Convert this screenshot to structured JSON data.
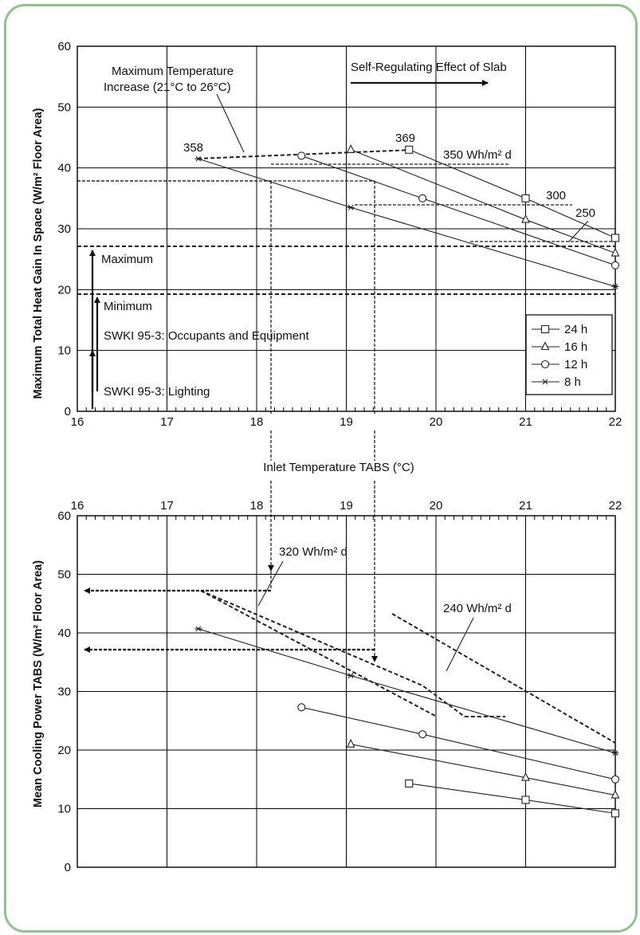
{
  "colors": {
    "frame_border": "#8cc48c",
    "ink": "#222222"
  },
  "top_chart": {
    "ylabel": "Maximum Total Heat Gain In Space (W/m² Floor Area)",
    "x_ticks": [
      "16",
      "17",
      "18",
      "19",
      "20",
      "21",
      "22"
    ],
    "y_ticks": [
      "0",
      "10",
      "20",
      "30",
      "40",
      "50",
      "60"
    ],
    "annotations": {
      "max_temp_1": "Maximum Temperature",
      "max_temp_2": "Increase (21°C to 26°C)",
      "self_reg": "Self-Regulating Effect of Slab",
      "v358": "358",
      "v369": "369",
      "v350": "350 Wh/m² d",
      "v300": "300",
      "v250": "250",
      "maximum": "Maximum",
      "minimum": "Minimum",
      "swki_occ": "SWKI 95-3: Occupants and Equipment",
      "swki_light": "SWKI 95-3: Lighting"
    },
    "legend": [
      {
        "label": "24 h",
        "marker": "square-icon"
      },
      {
        "label": "16 h",
        "marker": "triangle-icon"
      },
      {
        "label": "12 h",
        "marker": "circle-icon"
      },
      {
        "label": "8 h",
        "marker": "asterisk-icon"
      }
    ]
  },
  "shared_xlabel": "Inlet Temperature TABS (°C)",
  "bottom_chart": {
    "ylabel": "Mean Cooling Power TABS (W/m² Floor Area)",
    "x_ticks": [
      "16",
      "17",
      "18",
      "19",
      "20",
      "21",
      "22"
    ],
    "y_ticks": [
      "0",
      "10",
      "20",
      "30",
      "40",
      "50",
      "60"
    ],
    "annotations": {
      "v320": "320 Wh/m² d",
      "v240": "240 Wh/m² d"
    }
  },
  "chart_data": [
    {
      "type": "line",
      "xlim": [
        16,
        22
      ],
      "ylim": [
        0,
        60
      ],
      "xlabel": "Inlet Temperature TABS (°C)",
      "ylabel": "Maximum Total Heat Gain In Space (W/m² Floor Area)",
      "legend_placement": "right",
      "grid": true,
      "series": [
        {
          "name": "24 h",
          "marker": "square",
          "x": [
            19.7,
            21.0,
            22.0
          ],
          "y": [
            43,
            35,
            28.5
          ]
        },
        {
          "name": "16 h",
          "marker": "triangle",
          "x": [
            19.05,
            21.0,
            22.0
          ],
          "y": [
            43,
            31.5,
            26
          ]
        },
        {
          "name": "12 h",
          "marker": "circle",
          "x": [
            18.5,
            19.85,
            22.0
          ],
          "y": [
            42,
            35,
            24
          ]
        },
        {
          "name": "8 h",
          "marker": "asterisk",
          "x": [
            17.35,
            19.05,
            22.0
          ],
          "y": [
            41.5,
            33.5,
            20.5
          ]
        }
      ],
      "annotations": [
        "Maximum Temperature Increase (21°C to 26°C)",
        "Self-Regulating Effect of Slab",
        "358",
        "369",
        "350 Wh/m² d",
        "300",
        "250",
        "Maximum",
        "Minimum",
        "SWKI 95-3: Occupants and Equipment",
        "SWKI 95-3: Lighting"
      ]
    },
    {
      "type": "line",
      "xlim": [
        16,
        22
      ],
      "ylim": [
        0,
        60
      ],
      "ylabel": "Mean Cooling Power TABS (W/m² Floor Area)",
      "grid": true,
      "series": [
        {
          "name": "24 h",
          "marker": "square",
          "x": [
            19.7,
            21.0,
            22.0
          ],
          "y": [
            14.3,
            11.5,
            9.2
          ]
        },
        {
          "name": "16 h",
          "marker": "triangle",
          "x": [
            19.05,
            21.0,
            22.0
          ],
          "y": [
            21,
            15.3,
            12.3
          ]
        },
        {
          "name": "12 h",
          "marker": "circle",
          "x": [
            18.5,
            19.85,
            22.0
          ],
          "y": [
            27.3,
            22.7,
            15
          ]
        },
        {
          "name": "8 h",
          "marker": "asterisk",
          "x": [
            17.35,
            19.05,
            22.0
          ],
          "y": [
            40.7,
            32.7,
            19.5
          ]
        }
      ],
      "annotations": [
        "320 Wh/m² d",
        "240 Wh/m² d"
      ]
    }
  ]
}
